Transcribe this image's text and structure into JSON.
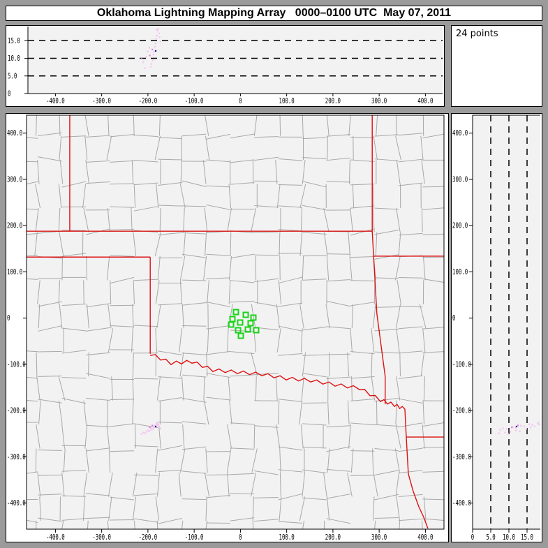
{
  "title": "Oklahoma Lightning Mapping Array   0000–0100 UTC  May 07, 2011",
  "info_box": {
    "points_label": "24 points"
  },
  "colors": {
    "frame_gray": "#9b9b9b",
    "panel_bg": "#ffffff",
    "plot_bg": "#f2f2f2",
    "axis": "#000000",
    "county_line": "#a8a8a8",
    "state_border": "#dd1111",
    "station_green": "#17d417",
    "point_pale": "#f2c4ee",
    "point_mid": "#e87fd8",
    "point_navy": "#1a1a99"
  },
  "chart_data": {
    "type": "scatter",
    "title": "Oklahoma Lightning Mapping Array   0000–0100 UTC  May 07, 2011",
    "status": "24 points",
    "panels": {
      "plan_view": {
        "x_range_km": [
          -462,
          440
        ],
        "y_range_km": [
          -456,
          439
        ],
        "grid": "county-map"
      },
      "ew_altitude": {
        "alt_range_km": [
          0,
          19.2
        ],
        "alt_gridlines_km": [
          5,
          10,
          15
        ],
        "grid_style": "dashed"
      },
      "ns_altitude": {
        "alt_range_km": [
          0,
          18.5
        ],
        "alt_gridlines_km": [
          5,
          10,
          15
        ],
        "grid_style": "dashed"
      }
    },
    "axes": {
      "ew_ticks": [
        {
          "km": -400,
          "label": "-400.0"
        },
        {
          "km": -300,
          "label": "-300.0"
        },
        {
          "km": -200,
          "label": "-200.0"
        },
        {
          "km": -100,
          "label": "-100.0"
        },
        {
          "km": 0,
          "label": "0"
        },
        {
          "km": 100,
          "label": "100.0"
        },
        {
          "km": 200,
          "label": "200.0"
        },
        {
          "km": 300,
          "label": "300.0"
        },
        {
          "km": 400,
          "label": "400.0"
        }
      ],
      "ns_ticks": [
        {
          "km": 400,
          "label": "400.0"
        },
        {
          "km": 300,
          "label": "300.0"
        },
        {
          "km": 200,
          "label": "200.0"
        },
        {
          "km": 100,
          "label": "100.0"
        },
        {
          "km": 0,
          "label": "0"
        },
        {
          "km": -100,
          "label": "-100.0"
        },
        {
          "km": -200,
          "label": "-200.0"
        },
        {
          "km": -300,
          "label": "-300.0"
        },
        {
          "km": -400,
          "label": "-400.0"
        }
      ],
      "alt_ticks_top": [
        {
          "km": 15,
          "label": "15.0"
        },
        {
          "km": 10,
          "label": "10.0"
        },
        {
          "km": 5,
          "label": "5.0"
        },
        {
          "km": 0,
          "label": "0"
        }
      ],
      "alt_ticks_right": [
        {
          "km": 0,
          "label": "0"
        },
        {
          "km": 5,
          "label": "5.0"
        },
        {
          "km": 10,
          "label": "10.0"
        },
        {
          "km": 15,
          "label": "15.0"
        }
      ]
    },
    "stations_km": [
      [
        -9.7,
        13.1
      ],
      [
        11.5,
        7.1
      ],
      [
        -17.2,
        -2.0
      ],
      [
        28.1,
        1.1
      ],
      [
        -0.6,
        -9.5
      ],
      [
        -20.2,
        -14.0
      ],
      [
        22.0,
        -11.0
      ],
      [
        -5.1,
        -26.1
      ],
      [
        16.0,
        -24.6
      ],
      [
        34.1,
        -26.1
      ],
      [
        0.9,
        -38.2
      ]
    ],
    "lightning_points": [
      {
        "ew": -213.8,
        "ns": -250.5,
        "alt": 9.8,
        "c": "pale"
      },
      {
        "ew": -210.0,
        "ns": -247.5,
        "alt": 8.9,
        "c": "pale"
      },
      {
        "ew": -206.3,
        "ns": -249.0,
        "alt": 7.2,
        "c": "pale"
      },
      {
        "ew": -203.2,
        "ns": -246.0,
        "alt": 10.4,
        "c": "pale"
      },
      {
        "ew": -200.2,
        "ns": -243.0,
        "alt": 11.9,
        "c": "pale"
      },
      {
        "ew": -197.2,
        "ns": -244.5,
        "alt": 13.0,
        "c": "pale"
      },
      {
        "ew": -194.2,
        "ns": -241.5,
        "alt": 7.6,
        "c": "pale"
      },
      {
        "ew": -192.7,
        "ns": -238.5,
        "alt": 8.4,
        "c": "pale"
      },
      {
        "ew": -189.6,
        "ns": -240.0,
        "alt": 9.4,
        "c": "pale"
      },
      {
        "ew": -188.1,
        "ns": -235.5,
        "alt": 11.1,
        "c": "pale"
      },
      {
        "ew": -186.6,
        "ns": -237.0,
        "alt": 11.9,
        "c": "pale"
      },
      {
        "ew": -185.1,
        "ns": -232.5,
        "alt": 13.3,
        "c": "pale"
      },
      {
        "ew": -183.6,
        "ns": -234.0,
        "alt": 14.2,
        "c": "pale"
      },
      {
        "ew": -182.1,
        "ns": -229.5,
        "alt": 15.6,
        "c": "pale"
      },
      {
        "ew": -180.6,
        "ns": -231.0,
        "alt": 16.4,
        "c": "pale"
      },
      {
        "ew": -179.1,
        "ns": -228.0,
        "alt": 17.9,
        "c": "pale"
      },
      {
        "ew": -177.5,
        "ns": -230.3,
        "alt": 18.4,
        "c": "pale"
      },
      {
        "ew": -176.0,
        "ns": -233.8,
        "alt": 17.1,
        "c": "pale"
      },
      {
        "ew": -174.5,
        "ns": -236.3,
        "alt": 16.0,
        "c": "pale"
      },
      {
        "ew": -173.0,
        "ns": -239.4,
        "alt": 14.8,
        "c": "pale"
      },
      {
        "ew": -190.4,
        "ns": -232.0,
        "alt": 12.5,
        "c": "mid"
      },
      {
        "ew": -196.0,
        "ns": -236.0,
        "alt": 10.8,
        "c": "mid"
      },
      {
        "ew": -181.0,
        "ns": -226.0,
        "alt": 18.2,
        "c": "pale"
      },
      {
        "ew": -183.2,
        "ns": -234.4,
        "alt": 12.1,
        "c": "navy"
      }
    ],
    "state_borders_km": [
      [
        [
          -369,
          439
        ],
        [
          -369,
          188
        ]
      ],
      [
        [
          -462,
          188
        ],
        [
          285,
          188
        ]
      ],
      [
        [
          285,
          439
        ],
        [
          285,
          188
        ]
      ],
      [
        [
          285,
          188
        ],
        [
          288,
          134
        ],
        [
          295,
          10
        ],
        [
          313,
          -126
        ],
        [
          313,
          -186
        ]
      ],
      [
        [
          -462,
          132
        ],
        [
          -195,
          132
        ]
      ],
      [
        [
          288,
          134
        ],
        [
          440,
          134
        ]
      ],
      [
        [
          -195,
          132
        ],
        [
          -195,
          -77
        ]
      ],
      [
        [
          355.6,
          -196.7
        ],
        [
          358.6,
          -257.1
        ]
      ],
      [
        [
          358.6,
          -257.1
        ],
        [
          440,
          -257.1
        ]
      ],
      [
        [
          358.6,
          -257.1
        ],
        [
          363.1,
          -337
        ],
        [
          373.7,
          -374.8
        ],
        [
          385.8,
          -408
        ],
        [
          396.4,
          -430.6
        ],
        [
          405.4,
          -454.8
        ]
      ]
    ],
    "river_km": [
      [
        -195.3,
        -77.4
      ],
      [
        -150.0,
        -97.1
      ],
      [
        -104.8,
        -94.0
      ],
      [
        -59.5,
        -112.2
      ],
      [
        -6.6,
        -116.7
      ],
      [
        46.2,
        -121.2
      ],
      [
        99.0,
        -130.3
      ],
      [
        151.8,
        -134.8
      ],
      [
        204.7,
        -143.8
      ],
      [
        257.5,
        -151.4
      ],
      [
        302.8,
        -177.1
      ],
      [
        333.0,
        -187.6
      ],
      [
        355.6,
        -196.7
      ]
    ],
    "county_grid": {
      "cell_km": 52,
      "jitter_km": 7,
      "skip_ratio": 0.12,
      "seed": 7,
      "extent_km": [
        -490,
        470
      ]
    }
  }
}
